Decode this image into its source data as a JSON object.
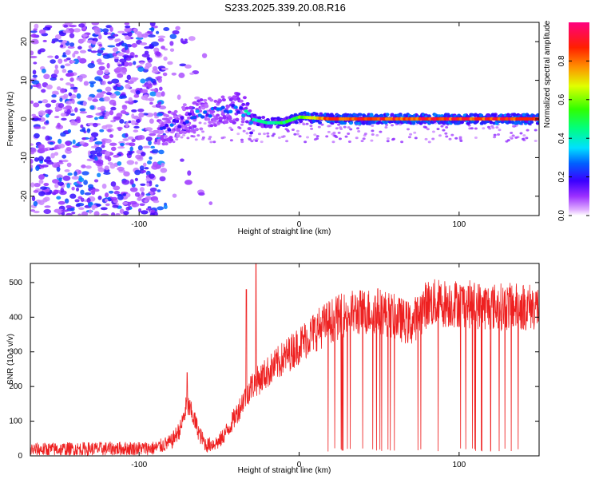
{
  "title": "S233.2025.339.20.08.R16",
  "chart_data": [
    {
      "type": "heatmap",
      "name": "spectrogram",
      "xlabel": "Height of straight line (km)",
      "ylabel": "Frequency (Hz)",
      "xlim": [
        -168,
        150
      ],
      "ylim": [
        -25,
        25
      ],
      "xticks": [
        -100,
        0,
        100
      ],
      "yticks": [
        -20,
        -10,
        0,
        10,
        20
      ],
      "xtick_labels": [
        "-100",
        "0",
        "100"
      ],
      "ytick_labels": [
        "-20",
        "-10",
        "0",
        "10",
        "20"
      ],
      "colorbar": {
        "label": "Normalized spectral amplitude",
        "range": [
          0,
          1
        ],
        "ticks": [
          0.0,
          0.2,
          0.4,
          0.6,
          0.8
        ],
        "tick_labels": [
          "0.0",
          "0.2",
          "0.4",
          "0.6",
          "0.8"
        ],
        "colors": [
          "#ffffff",
          "#c77dff",
          "#8000ff",
          "#0000ff",
          "#00ffff",
          "#00ff00",
          "#ffff00",
          "#ff8000",
          "#ff0000",
          "#ff00a0"
        ]
      },
      "noise_region": {
        "x": [
          -168,
          -85
        ],
        "freq": [
          -25,
          25
        ],
        "amplitude": [
          0.05,
          0.3
        ]
      },
      "signal_trace": [
        {
          "x": -85,
          "freq": -3,
          "amplitude": 0.25
        },
        {
          "x": -75,
          "freq": -1,
          "amplitude": 0.25
        },
        {
          "x": -65,
          "freq": 1,
          "amplitude": 0.3
        },
        {
          "x": -55,
          "freq": 2,
          "amplitude": 0.25
        },
        {
          "x": -45,
          "freq": 2,
          "amplitude": 0.3
        },
        {
          "x": -38,
          "freq": 3,
          "amplitude": 0.3
        },
        {
          "x": -30,
          "freq": 0,
          "amplitude": 0.4
        },
        {
          "x": -20,
          "freq": -1,
          "amplitude": 0.45
        },
        {
          "x": -10,
          "freq": -1,
          "amplitude": 0.5
        },
        {
          "x": 0,
          "freq": 0.5,
          "amplitude": 0.6
        },
        {
          "x": 20,
          "freq": 0,
          "amplitude": 0.9
        },
        {
          "x": 60,
          "freq": 0,
          "amplitude": 0.9
        },
        {
          "x": 100,
          "freq": 0,
          "amplitude": 0.9
        },
        {
          "x": 150,
          "freq": 0,
          "amplitude": 0.9
        }
      ]
    },
    {
      "type": "line",
      "name": "snr",
      "xlabel": "Height of straight line (km)",
      "ylabel": "SNR (10 * v/v)",
      "xlim": [
        -168,
        150
      ],
      "ylim": [
        0,
        555
      ],
      "xticks": [
        -100,
        0,
        100
      ],
      "yticks": [
        0,
        100,
        200,
        300,
        400,
        500
      ],
      "xtick_labels": [
        "-100",
        "0",
        "100"
      ],
      "ytick_labels": [
        "0",
        "100",
        "200",
        "300",
        "400",
        "500"
      ],
      "color": "#ee2020",
      "envelope": {
        "x": [
          -168,
          -90,
          -80,
          -74,
          -70,
          -66,
          -62,
          -58,
          -50,
          -44,
          -38,
          -34,
          -30,
          -20,
          -10,
          0,
          10,
          20,
          30,
          50,
          70,
          80,
          100,
          120,
          150
        ],
        "y": [
          18,
          22,
          40,
          80,
          150,
          110,
          60,
          30,
          40,
          80,
          130,
          170,
          200,
          240,
          280,
          320,
          360,
          390,
          410,
          420,
          380,
          440,
          440,
          430,
          430
        ]
      },
      "noise_amplitude": 18,
      "spikes": [
        {
          "x": -70,
          "y": 240
        },
        {
          "x": -27,
          "y": 555
        },
        {
          "x": -33,
          "y": 480
        }
      ],
      "dropouts_start_x": 18,
      "dropouts_end_x": 140
    }
  ]
}
